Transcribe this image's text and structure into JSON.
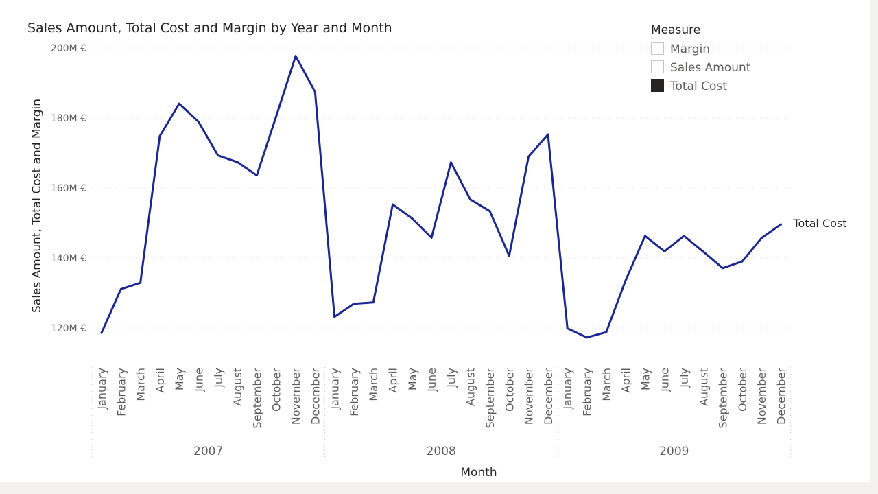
{
  "chart_data": {
    "type": "line",
    "title": "Sales Amount, Total Cost and Margin by Year and Month",
    "xlabel": "Month",
    "ylabel": "Sales Amount, Total Cost and Margin",
    "ylim": [
      112,
      200
    ],
    "yticks": [
      120,
      140,
      160,
      180,
      200
    ],
    "ytick_labels": [
      "120M €",
      "140M €",
      "160M €",
      "180M €",
      "200M €"
    ],
    "grid": true,
    "years": [
      "2007",
      "2008",
      "2009"
    ],
    "months": [
      "January",
      "February",
      "March",
      "April",
      "May",
      "June",
      "July",
      "August",
      "September",
      "October",
      "November",
      "December"
    ],
    "series": [
      {
        "name": "Total Cost",
        "color": "#1a2791",
        "end_label": "Total Cost",
        "values": [
          118.6,
          131.1,
          132.9,
          174.8,
          184.1,
          178.9,
          169.3,
          167.4,
          163.6,
          180.5,
          197.7,
          187.5,
          123.2,
          126.9,
          127.3,
          155.3,
          151.3,
          145.8,
          167.3,
          156.7,
          153.4,
          140.6,
          169.0,
          175.3,
          119.9,
          117.3,
          118.8,
          133.6,
          146.3,
          141.9,
          146.3,
          141.8,
          137.1,
          139.0,
          145.7,
          149.6
        ]
      }
    ],
    "legend": {
      "title": "Measure",
      "position": "top-right",
      "items": [
        {
          "label": "Margin",
          "active": false
        },
        {
          "label": "Sales Amount",
          "active": false
        },
        {
          "label": "Total Cost",
          "active": true
        }
      ]
    }
  }
}
